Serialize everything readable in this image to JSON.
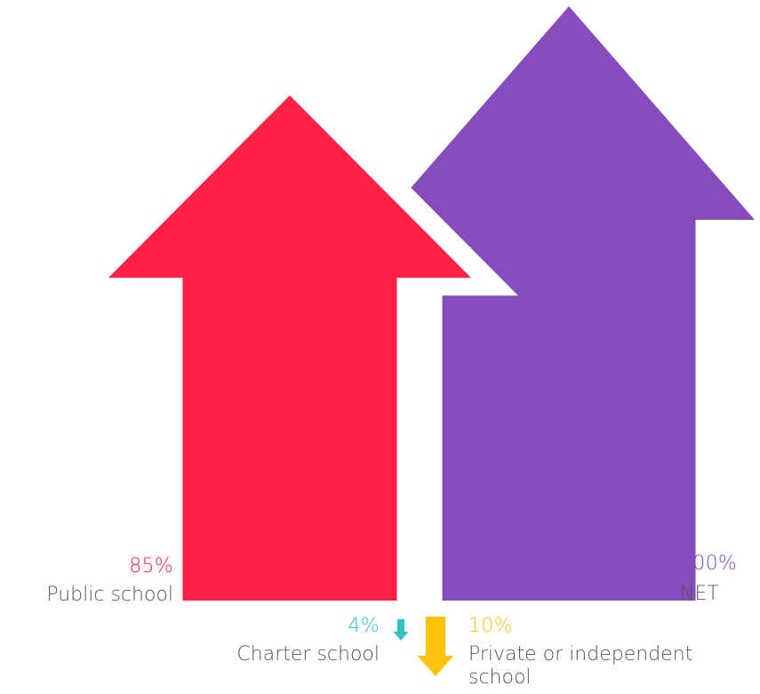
{
  "chart_data": {
    "type": "bar",
    "categories": [
      "Public school",
      "Charter school",
      "Private or independent school",
      "NET"
    ],
    "values": [
      85,
      4,
      10,
      100
    ],
    "value_labels": [
      "85%",
      "4%",
      "10%",
      "100%"
    ],
    "direction": [
      "up",
      "down",
      "down",
      "up"
    ],
    "colors": [
      "#ff2045",
      "#2ec4c4",
      "#ffc10e",
      "#864cbd"
    ],
    "title": "",
    "xlabel": "",
    "ylabel": "",
    "ylim": [
      0,
      100
    ]
  },
  "colors": {
    "label_text": "#555555"
  }
}
